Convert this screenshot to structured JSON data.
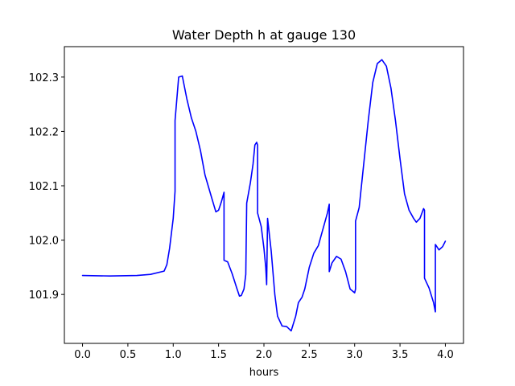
{
  "chart_data": {
    "type": "line",
    "title": "Water Depth h at gauge 130",
    "xlabel": "hours",
    "ylabel": "",
    "xlim": [
      -0.2,
      4.2
    ],
    "ylim": [
      101.81,
      102.356
    ],
    "xticks": [
      0.0,
      0.5,
      1.0,
      1.5,
      2.0,
      2.5,
      3.0,
      3.5,
      4.0
    ],
    "xtick_labels": [
      "0.0",
      "0.5",
      "1.0",
      "1.5",
      "2.0",
      "2.5",
      "3.0",
      "3.5",
      "4.0"
    ],
    "yticks": [
      101.9,
      102.0,
      102.1,
      102.2,
      102.3
    ],
    "ytick_labels": [
      "101.9",
      "102.0",
      "102.1",
      "102.2",
      "102.3"
    ],
    "grid": false,
    "colors": {
      "line": "#0000ff"
    },
    "series": [
      {
        "points": [
          [
            0.0,
            101.935
          ],
          [
            0.3,
            101.934
          ],
          [
            0.6,
            101.935
          ],
          [
            0.75,
            101.937
          ],
          [
            0.9,
            101.943
          ],
          [
            0.93,
            101.955
          ],
          [
            0.96,
            101.985
          ],
          [
            1.0,
            102.04
          ],
          [
            1.02,
            102.09
          ],
          [
            1.02,
            102.22
          ],
          [
            1.06,
            102.3
          ],
          [
            1.1,
            102.302
          ],
          [
            1.15,
            102.26
          ],
          [
            1.2,
            102.225
          ],
          [
            1.25,
            102.2
          ],
          [
            1.3,
            102.165
          ],
          [
            1.35,
            102.12
          ],
          [
            1.42,
            102.08
          ],
          [
            1.47,
            102.052
          ],
          [
            1.5,
            102.055
          ],
          [
            1.53,
            102.07
          ],
          [
            1.56,
            102.088
          ],
          [
            1.56,
            101.963
          ],
          [
            1.6,
            101.96
          ],
          [
            1.65,
            101.938
          ],
          [
            1.7,
            101.912
          ],
          [
            1.73,
            101.897
          ],
          [
            1.75,
            101.898
          ],
          [
            1.78,
            101.91
          ],
          [
            1.8,
            101.937
          ],
          [
            1.81,
            102.068
          ],
          [
            1.85,
            102.105
          ],
          [
            1.88,
            102.14
          ],
          [
            1.9,
            102.175
          ],
          [
            1.92,
            102.18
          ],
          [
            1.93,
            102.175
          ],
          [
            1.93,
            102.05
          ],
          [
            1.97,
            102.025
          ],
          [
            2.0,
            101.985
          ],
          [
            2.02,
            101.95
          ],
          [
            2.03,
            101.918
          ],
          [
            2.04,
            102.04
          ],
          [
            2.08,
            101.98
          ],
          [
            2.12,
            101.9
          ],
          [
            2.15,
            101.86
          ],
          [
            2.2,
            101.842
          ],
          [
            2.25,
            101.841
          ],
          [
            2.3,
            101.833
          ],
          [
            2.35,
            101.86
          ],
          [
            2.38,
            101.885
          ],
          [
            2.42,
            101.895
          ],
          [
            2.45,
            101.91
          ],
          [
            2.5,
            101.95
          ],
          [
            2.55,
            101.976
          ],
          [
            2.6,
            101.99
          ],
          [
            2.65,
            102.02
          ],
          [
            2.7,
            102.05
          ],
          [
            2.72,
            102.066
          ],
          [
            2.72,
            101.942
          ],
          [
            2.75,
            101.958
          ],
          [
            2.8,
            101.97
          ],
          [
            2.85,
            101.965
          ],
          [
            2.9,
            101.942
          ],
          [
            2.95,
            101.91
          ],
          [
            3.0,
            101.903
          ],
          [
            3.01,
            101.91
          ],
          [
            3.01,
            102.035
          ],
          [
            3.05,
            102.06
          ],
          [
            3.1,
            102.14
          ],
          [
            3.15,
            102.22
          ],
          [
            3.2,
            102.29
          ],
          [
            3.25,
            102.325
          ],
          [
            3.3,
            102.332
          ],
          [
            3.35,
            102.32
          ],
          [
            3.4,
            102.28
          ],
          [
            3.45,
            102.22
          ],
          [
            3.5,
            102.15
          ],
          [
            3.55,
            102.085
          ],
          [
            3.6,
            102.055
          ],
          [
            3.65,
            102.04
          ],
          [
            3.68,
            102.033
          ],
          [
            3.72,
            102.04
          ],
          [
            3.76,
            102.058
          ],
          [
            3.77,
            102.055
          ],
          [
            3.77,
            101.93
          ],
          [
            3.82,
            101.912
          ],
          [
            3.87,
            101.885
          ],
          [
            3.89,
            101.868
          ],
          [
            3.89,
            101.992
          ],
          [
            3.93,
            101.982
          ],
          [
            3.97,
            101.988
          ],
          [
            4.0,
            101.998
          ]
        ]
      }
    ]
  }
}
